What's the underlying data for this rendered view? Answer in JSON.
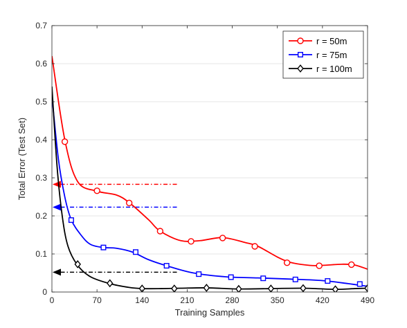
{
  "chart_data": {
    "type": "line",
    "xlabel": "Training Samples",
    "ylabel": "Total Error (Test Set)",
    "xlim": [
      0,
      490
    ],
    "ylim": [
      0,
      0.7
    ],
    "xticks": [
      "0",
      "70",
      "140",
      "210",
      "280",
      "350",
      "420",
      "490"
    ],
    "xtick_values": [
      0,
      70,
      140,
      210,
      280,
      350,
      420,
      490
    ],
    "yticks": [
      "0",
      "0.1",
      "0.2",
      "0.3",
      "0.4",
      "0.5",
      "0.6",
      "0.7"
    ],
    "ytick_values": [
      0,
      0.1,
      0.2,
      0.3,
      0.4,
      0.5,
      0.6,
      0.7
    ],
    "grid": true,
    "legend_position": "top-right",
    "series": [
      {
        "name": "r = 50m",
        "color": "#ff0000",
        "marker": "circle",
        "curve_x": [
          0,
          20,
          40,
          70,
          100,
          120,
          150,
          168,
          200,
          230,
          265,
          300,
          320,
          350,
          370,
          400,
          420,
          450,
          470,
          490
        ],
        "curve_y": [
          0.62,
          0.4,
          0.29,
          0.265,
          0.255,
          0.235,
          0.19,
          0.16,
          0.135,
          0.135,
          0.143,
          0.13,
          0.12,
          0.092,
          0.078,
          0.07,
          0.07,
          0.073,
          0.071,
          0.06
        ],
        "marker_x": [
          20,
          70,
          120,
          168,
          216,
          265,
          315,
          365,
          415,
          465
        ],
        "marker_y": [
          0.395,
          0.266,
          0.234,
          0.16,
          0.133,
          0.142,
          0.12,
          0.077,
          0.069,
          0.072
        ],
        "reference": 0.283
      },
      {
        "name": "r = 75m",
        "color": "#0000ff",
        "marker": "square",
        "curve_x": [
          0,
          10,
          20,
          30,
          45,
          60,
          80,
          100,
          125,
          150,
          180,
          220,
          270,
          320,
          370,
          420,
          460,
          490
        ],
        "curve_y": [
          0.515,
          0.35,
          0.25,
          0.19,
          0.15,
          0.125,
          0.117,
          0.115,
          0.105,
          0.085,
          0.068,
          0.05,
          0.04,
          0.037,
          0.034,
          0.03,
          0.022,
          0.015
        ],
        "marker_x": [
          30,
          80,
          130,
          178,
          228,
          278,
          328,
          378,
          428,
          478
        ],
        "marker_y": [
          0.189,
          0.117,
          0.105,
          0.069,
          0.047,
          0.039,
          0.036,
          0.033,
          0.029,
          0.021
        ],
        "reference": 0.223
      },
      {
        "name": "r = 100m",
        "color": "#000000",
        "marker": "diamond",
        "curve_x": [
          0,
          8,
          16,
          25,
          40,
          60,
          90,
          120,
          140,
          170,
          200,
          240,
          290,
          340,
          390,
          440,
          470,
          490
        ],
        "curve_y": [
          0.54,
          0.33,
          0.2,
          0.12,
          0.07,
          0.04,
          0.022,
          0.012,
          0.009,
          0.009,
          0.01,
          0.011,
          0.008,
          0.009,
          0.01,
          0.007,
          0.009,
          0.01
        ],
        "marker_x": [
          40,
          90,
          140,
          190,
          240,
          290,
          340,
          390,
          440,
          490
        ],
        "marker_y": [
          0.073,
          0.023,
          0.009,
          0.009,
          0.011,
          0.008,
          0.009,
          0.01,
          0.007,
          0.01
        ],
        "reference": 0.052
      }
    ],
    "reference_arrows": {
      "x_start": 194,
      "x_end": 0
    }
  }
}
